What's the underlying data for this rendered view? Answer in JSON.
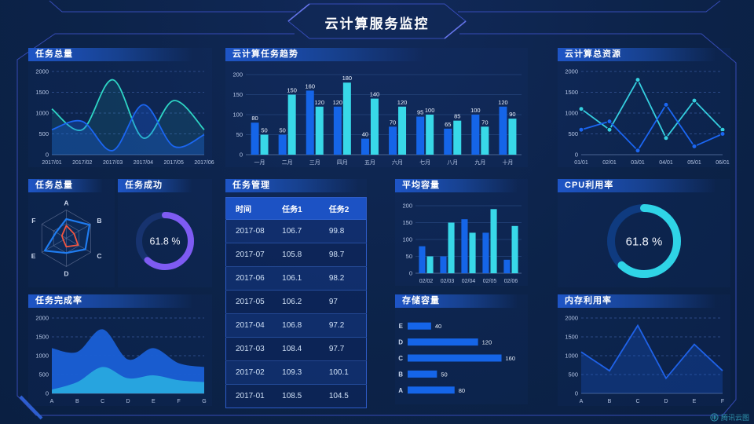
{
  "header": {
    "title": "云计算服务监控"
  },
  "watermark": {
    "label": "腾讯云图"
  },
  "colors": {
    "background": "#0c2349",
    "panel_title_gradient_start": "#1e55c6",
    "bar_blue": "#1565e8",
    "bar_cyan": "#38d8e8",
    "line_teal": "#2ed5c5",
    "line_blue": "#1b66f2",
    "donut_purple": "#7e5bf2",
    "donut_cyan": "#2fd4e6",
    "radar_blue": "#1f7cf0",
    "radar_red": "#f25540",
    "frame_line": "#3b50c2"
  },
  "panels": {
    "taskTotalLine": {
      "title": "任务总量"
    },
    "cloudTaskTrend": {
      "title": "云计算任务趋势"
    },
    "cloudTotalRes": {
      "title": "云计算总资源"
    },
    "taskRadar": {
      "title": "任务总量"
    },
    "taskSuccess": {
      "title": "任务成功"
    },
    "taskManage": {
      "title": "任务管理"
    },
    "avgCapacity": {
      "title": "平均容量"
    },
    "cpuUsage": {
      "title": "CPU利用率"
    },
    "taskCompletion": {
      "title": "任务完成率"
    },
    "storageCapacity": {
      "title": "存储容量"
    },
    "memUsage": {
      "title": "内存利用率"
    }
  },
  "chart_data": [
    {
      "id": "task-total-line",
      "type": "line",
      "smooth": true,
      "grid": "dashed",
      "x": [
        "2017/01",
        "2017/02",
        "2017/03",
        "2017/04",
        "2017/05",
        "2017/06"
      ],
      "ylim": [
        0,
        2000
      ],
      "yticks": [
        0,
        500,
        1000,
        1500,
        2000
      ],
      "series": [
        {
          "name": "series-teal",
          "color": "#2ed5c5",
          "fill": "rgba(46,213,197,0.10)",
          "values": [
            1100,
            600,
            1800,
            400,
            1300,
            600
          ]
        },
        {
          "name": "series-blue",
          "color": "#1b66f2",
          "fill": "rgba(27,102,242,0.28)",
          "values": [
            600,
            800,
            100,
            1200,
            200,
            480
          ]
        }
      ]
    },
    {
      "id": "cloud-task-trend",
      "type": "bar",
      "labels": true,
      "grid": "solid",
      "categories": [
        "一月",
        "二月",
        "三月",
        "四月",
        "五月",
        "六月",
        "七月",
        "八月",
        "九月",
        "十月"
      ],
      "ylim": [
        0,
        200
      ],
      "yticks": [
        0,
        50,
        100,
        150,
        200
      ],
      "series": [
        {
          "name": "任务1",
          "color": "#1565e8",
          "values": [
            80,
            50,
            160,
            120,
            40,
            70,
            95,
            65,
            100,
            120
          ]
        },
        {
          "name": "任务2",
          "color": "#38d8e8",
          "values": [
            50,
            150,
            120,
            180,
            140,
            120,
            100,
            85,
            70,
            90
          ]
        }
      ]
    },
    {
      "id": "cloud-total-resources",
      "type": "line",
      "smooth": false,
      "grid": "dashed",
      "x": [
        "01/01",
        "02/01",
        "03/01",
        "04/01",
        "05/01",
        "06/01"
      ],
      "ylim": [
        0,
        2000
      ],
      "yticks": [
        0,
        500,
        1000,
        1500,
        2000
      ],
      "series": [
        {
          "name": "series-cyan",
          "color": "#35cfe0",
          "marker": true,
          "values": [
            1100,
            600,
            1800,
            400,
            1300,
            600
          ]
        },
        {
          "name": "series-blue",
          "color": "#1b66f2",
          "marker": true,
          "values": [
            600,
            800,
            100,
            1200,
            200,
            500
          ]
        }
      ]
    },
    {
      "id": "task-radar",
      "type": "radar",
      "max": 100,
      "axes": [
        "A",
        "B",
        "C",
        "D",
        "E",
        "F"
      ],
      "series": [
        {
          "name": "blue",
          "color": "#1f7cf0",
          "values": [
            68,
            95,
            78,
            52,
            88,
            42
          ]
        },
        {
          "name": "red",
          "color": "#f25540",
          "values": [
            45,
            32,
            48,
            30,
            12,
            18
          ]
        }
      ]
    },
    {
      "id": "task-success-donut",
      "type": "donut",
      "value": 61.8,
      "unit": "%",
      "color": "#7e5bf2",
      "track": "#17336f",
      "r": 33,
      "sw": 8,
      "fontSize": 12.5
    },
    {
      "id": "avg-capacity",
      "type": "bar",
      "labels": false,
      "grid": "solid",
      "categories": [
        "02/02",
        "02/03",
        "02/04",
        "02/05",
        "02/06"
      ],
      "ylim": [
        0,
        200
      ],
      "yticks": [
        0,
        50,
        100,
        150,
        200
      ],
      "series": [
        {
          "name": "series-blue",
          "color": "#1565e8",
          "values": [
            80,
            50,
            160,
            120,
            40
          ]
        },
        {
          "name": "series-cyan",
          "color": "#38d8e8",
          "values": [
            50,
            150,
            120,
            190,
            140
          ]
        }
      ]
    },
    {
      "id": "cpu-donut",
      "type": "donut",
      "value": 61.8,
      "unit": "%",
      "color": "#2fd4e6",
      "track": "#0f3b80",
      "r": 42,
      "sw": 10,
      "fontSize": 15
    },
    {
      "id": "task-completion",
      "type": "area",
      "smooth": true,
      "grid": "dashed",
      "x": [
        "A",
        "B",
        "C",
        "D",
        "E",
        "F",
        "G"
      ],
      "ylim": [
        0,
        2000
      ],
      "yticks": [
        0,
        500,
        1000,
        1500,
        2000
      ],
      "series": [
        {
          "name": "back-blue",
          "color": "#1a5fd4",
          "values": [
            1200,
            1100,
            1700,
            900,
            1200,
            800,
            700
          ]
        },
        {
          "name": "front-cyan",
          "color": "#28a8e0",
          "values": [
            100,
            300,
            700,
            400,
            480,
            350,
            300
          ]
        }
      ]
    },
    {
      "id": "storage-capacity",
      "type": "hbar",
      "color": "#1565e8",
      "xmax": 170,
      "categories": [
        "E",
        "D",
        "C",
        "B",
        "A"
      ],
      "values": [
        40,
        120,
        160,
        50,
        80
      ]
    },
    {
      "id": "memory-usage",
      "type": "line",
      "smooth": false,
      "grid": "dashed",
      "x": [
        "A",
        "B",
        "C",
        "D",
        "E",
        "F"
      ],
      "ylim": [
        0,
        2000
      ],
      "yticks": [
        0,
        500,
        1000,
        1500,
        2000
      ],
      "series": [
        {
          "name": "series-blue",
          "color": "#1f62e8",
          "fill": "rgba(26,90,216,0.28)",
          "values": [
            1100,
            600,
            1800,
            400,
            1300,
            600
          ]
        }
      ]
    },
    {
      "id": "task-table",
      "type": "table",
      "headers": [
        "时间",
        "任务1",
        "任务2"
      ],
      "rows": [
        [
          "2017-08",
          "106.7",
          "99.8"
        ],
        [
          "2017-07",
          "105.8",
          "98.7"
        ],
        [
          "2017-06",
          "106.1",
          "98.2"
        ],
        [
          "2017-05",
          "106.2",
          "97"
        ],
        [
          "2017-04",
          "106.8",
          "97.2"
        ],
        [
          "2017-03",
          "108.4",
          "97.7"
        ],
        [
          "2017-02",
          "109.3",
          "100.1"
        ],
        [
          "2017-01",
          "108.5",
          "104.5"
        ]
      ]
    }
  ]
}
